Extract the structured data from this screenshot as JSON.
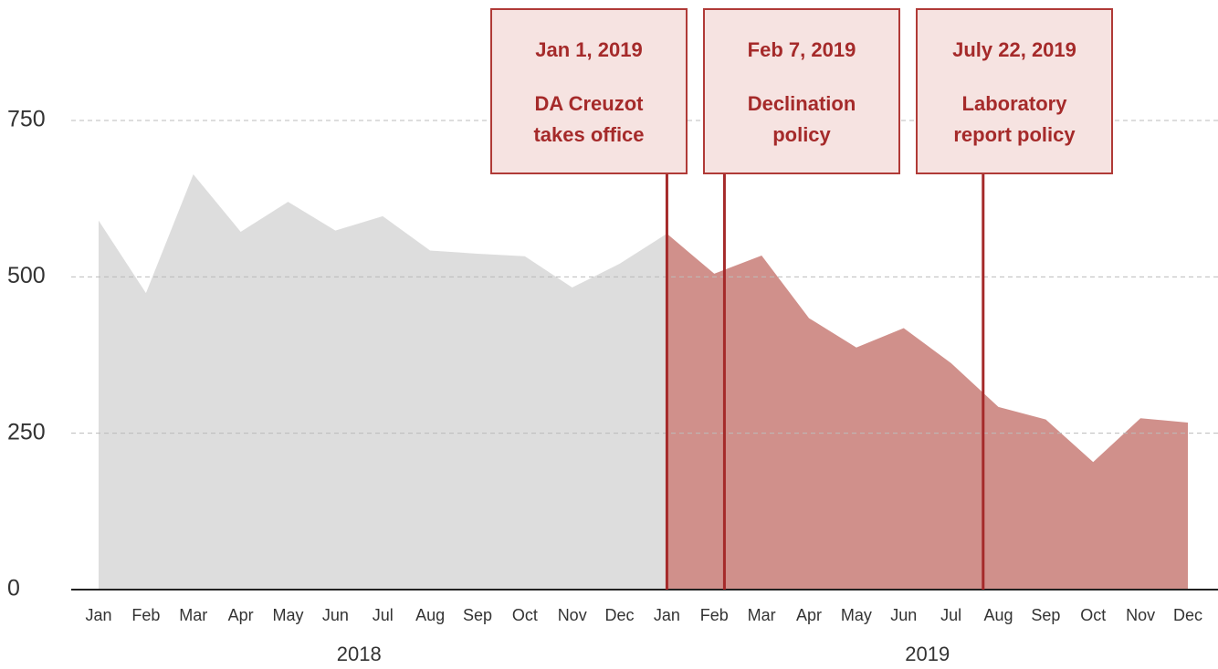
{
  "chart_data": {
    "type": "area",
    "categories": [
      "Jan",
      "Feb",
      "Mar",
      "Apr",
      "May",
      "Jun",
      "Jul",
      "Aug",
      "Sep",
      "Oct",
      "Nov",
      "Dec",
      "Jan",
      "Feb",
      "Mar",
      "Apr",
      "May",
      "Jun",
      "Jul",
      "Aug",
      "Sep",
      "Oct",
      "Nov",
      "Dec"
    ],
    "groups": [
      "2018",
      "2019"
    ],
    "series": [
      {
        "color": "#dddddd",
        "values": [
          590,
          474,
          664,
          572,
          620,
          574,
          597,
          542,
          537,
          533,
          483,
          521,
          569,
          null,
          null,
          null,
          null,
          null,
          null,
          null,
          null,
          null,
          null,
          null
        ]
      },
      {
        "color": "#d0908b",
        "values": [
          null,
          null,
          null,
          null,
          null,
          null,
          null,
          null,
          null,
          null,
          null,
          null,
          569,
          505,
          534,
          434,
          387,
          418,
          362,
          292,
          272,
          204,
          274,
          267
        ]
      }
    ],
    "ylim": [
      0,
      750
    ],
    "yticks": [
      0,
      250,
      500,
      750
    ],
    "grid": true,
    "annotations": [
      {
        "date": "Jan 1, 2019",
        "text": [
          "DA Creuzot",
          "takes office"
        ]
      },
      {
        "date": "Feb 7, 2019",
        "text": [
          "Declination",
          "policy"
        ]
      },
      {
        "date": "July 22, 2019",
        "text": [
          "Laboratory",
          "report policy"
        ]
      }
    ]
  }
}
